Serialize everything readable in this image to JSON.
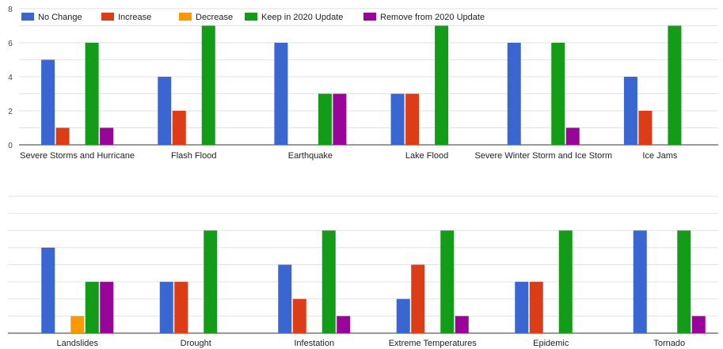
{
  "colors": {
    "no_change": "#3a66d1",
    "increase": "#dc3d16",
    "decrease": "#fc9900",
    "keep": "#139c18",
    "remove": "#990599"
  },
  "chart_data": [
    {
      "type": "bar",
      "title": "",
      "xlabel": "",
      "ylabel": "",
      "ylim": [
        0,
        8
      ],
      "yticks": [
        0,
        2,
        4,
        6,
        8
      ],
      "grid": true,
      "legend": "top",
      "categories": [
        "Severe Storms and Hurricane",
        "Flash Flood",
        "Earthquake",
        "Lake Flood",
        "Severe Winter Storm and Ice Storm",
        "Ice Jams"
      ],
      "series": [
        {
          "name": "No Change",
          "values": [
            5,
            4,
            6,
            3,
            6,
            4
          ]
        },
        {
          "name": "Increase",
          "values": [
            1,
            2,
            0,
            3,
            0,
            2
          ]
        },
        {
          "name": "Decrease",
          "values": [
            0,
            0,
            0,
            0,
            0,
            0
          ]
        },
        {
          "name": "Keep in 2020 Update",
          "values": [
            6,
            7,
            3,
            7,
            6,
            7
          ]
        },
        {
          "name": "Remove from 2020 Update",
          "values": [
            1,
            0,
            3,
            0,
            1,
            0
          ]
        }
      ]
    },
    {
      "type": "bar",
      "title": "",
      "xlabel": "",
      "ylabel": "",
      "ylim": [
        0,
        8
      ],
      "grid": true,
      "categories": [
        "Landslides",
        "Drought",
        "Infestation",
        "Extreme Temperatures",
        "Epidemic",
        "Tornado"
      ],
      "series": [
        {
          "name": "No Change",
          "values": [
            5,
            3,
            4,
            2,
            3,
            6
          ]
        },
        {
          "name": "Increase",
          "values": [
            0,
            3,
            2,
            4,
            3,
            0
          ]
        },
        {
          "name": "Decrease",
          "values": [
            1,
            0,
            0,
            0,
            0,
            0
          ]
        },
        {
          "name": "Keep in 2020 Update",
          "values": [
            3,
            6,
            6,
            6,
            6,
            6
          ]
        },
        {
          "name": "Remove from 2020 Update",
          "values": [
            3,
            0,
            1,
            1,
            0,
            1
          ]
        }
      ]
    }
  ]
}
